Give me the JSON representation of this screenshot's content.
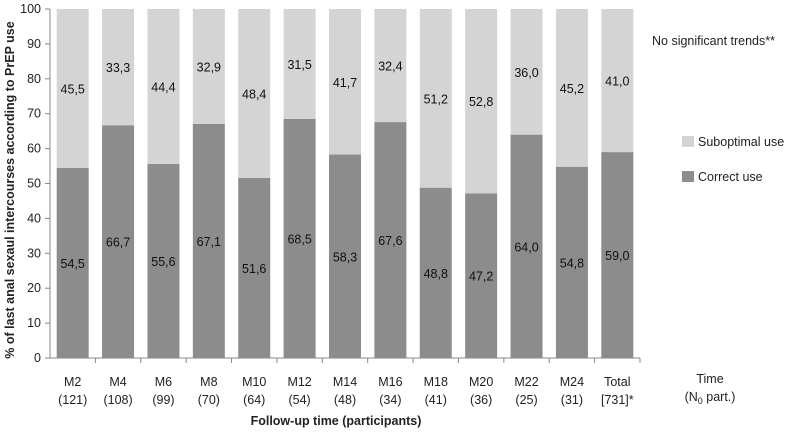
{
  "chart_data": {
    "type": "bar",
    "stacked": true,
    "ylim": [
      0,
      100
    ],
    "yticks": [
      0,
      10,
      20,
      30,
      40,
      50,
      60,
      70,
      80,
      90,
      100
    ],
    "ylabel": "% of last anal sexaul intercourses according to PrEP use",
    "xlabel": "Follow-up time (participants)",
    "categories": [
      {
        "label": "M2",
        "sub": "(121)"
      },
      {
        "label": "M4",
        "sub": "(108)"
      },
      {
        "label": "M6",
        "sub": "(99)"
      },
      {
        "label": "M8",
        "sub": "(70)"
      },
      {
        "label": "M10",
        "sub": "(64)"
      },
      {
        "label": "M12",
        "sub": "(54)"
      },
      {
        "label": "M14",
        "sub": "(48)"
      },
      {
        "label": "M16",
        "sub": "(34)"
      },
      {
        "label": "M18",
        "sub": "(41)"
      },
      {
        "label": "M20",
        "sub": "(36)"
      },
      {
        "label": "M22",
        "sub": "(25)"
      },
      {
        "label": "M24",
        "sub": "(31)"
      },
      {
        "label": "Total",
        "sub": "[731]*"
      }
    ],
    "series": [
      {
        "name": "Correct use",
        "color": "#8c8c8c",
        "values": [
          54.5,
          66.7,
          55.6,
          67.1,
          51.6,
          68.5,
          58.3,
          67.6,
          48.8,
          47.2,
          64.0,
          54.8,
          59.0
        ],
        "labels": [
          "54,5",
          "66,7",
          "55,6",
          "67,1",
          "51,6",
          "68,5",
          "58,3",
          "67,6",
          "48,8",
          "47,2",
          "64,0",
          "54,8",
          "59,0"
        ]
      },
      {
        "name": "Suboptimal use",
        "color": "#d4d4d4",
        "values": [
          45.5,
          33.3,
          44.4,
          32.9,
          48.4,
          31.5,
          41.7,
          32.4,
          51.2,
          52.8,
          36.0,
          45.2,
          41.0
        ],
        "labels": [
          "45,5",
          "33,3",
          "44,4",
          "32,9",
          "48,4",
          "31,5",
          "41,7",
          "32,4",
          "51,2",
          "52,8",
          "36,0",
          "45,2",
          "41,0"
        ]
      }
    ],
    "legend": {
      "position": "right",
      "entries": [
        "Suboptimal use",
        "Correct use"
      ]
    },
    "annotation": "No significant trends**",
    "side_label": {
      "line1": "Time",
      "line2": "(N",
      "sub": "0",
      "line2_end": " part.)"
    },
    "grid": false
  }
}
